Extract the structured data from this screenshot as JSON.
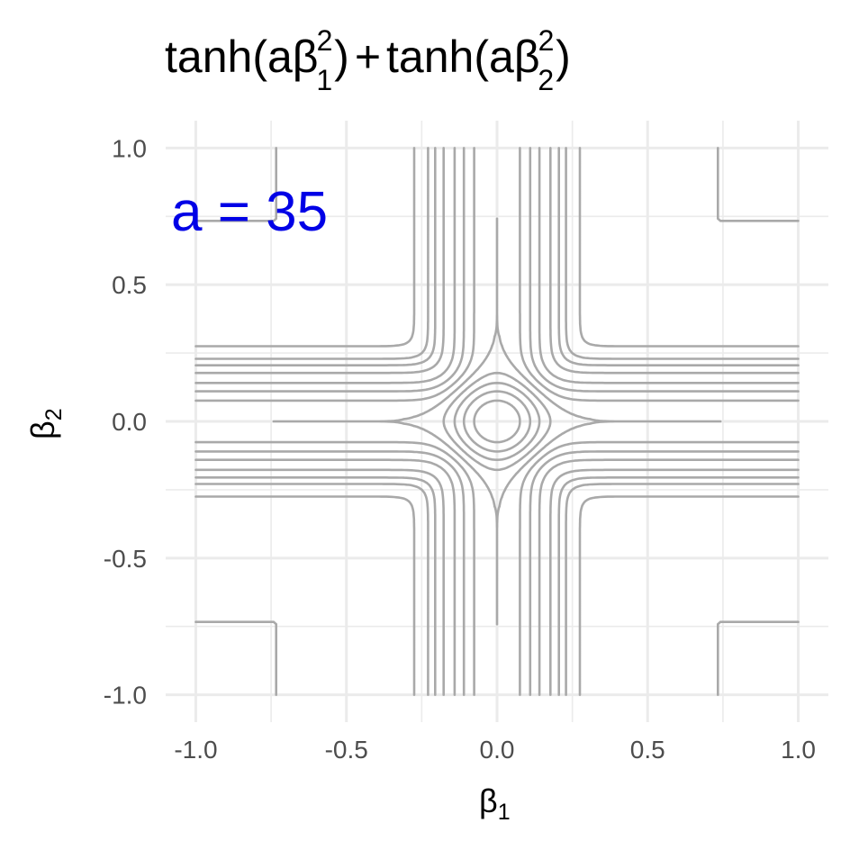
{
  "chart_data": {
    "type": "contour",
    "title": {
      "func": "tanh",
      "paren_open": "(",
      "param": "a",
      "beta": "β",
      "sup": "2",
      "sub1": "1",
      "sub2": "2",
      "paren_close": ")",
      "plus": "+"
    },
    "xlabel": {
      "symbol": "β",
      "subscript": "1"
    },
    "ylabel": {
      "symbol": "β",
      "subscript": "2"
    },
    "xlim": [
      -1.1,
      1.1
    ],
    "ylim": [
      -1.1,
      1.1
    ],
    "x_ticks": [
      -1.0,
      -0.5,
      0.0,
      0.5,
      1.0
    ],
    "y_ticks": [
      -1.0,
      -0.5,
      0.0,
      0.5,
      1.0
    ],
    "x_tick_labels": [
      "-1.0",
      "-0.5",
      "0.0",
      "0.5",
      "1.0"
    ],
    "y_tick_labels": [
      "-1.0",
      "-0.5",
      "0.0",
      "0.5",
      "1.0"
    ],
    "grid": true,
    "background": "#ffffff",
    "grid_color": "#ebebeb",
    "line_color": "#a9a9a9",
    "annotation": {
      "text": "a = 35",
      "color": "#0000e6"
    },
    "function": {
      "name": "tanh(a·b1²) + tanh(a·b2²)",
      "a": 35
    },
    "domain": [
      -1.0,
      1.0
    ],
    "contour_levels": [
      0.2,
      0.4,
      0.6,
      0.8,
      1.0,
      1.2,
      1.4,
      1.6,
      1.8,
      1.9,
      1.95,
      1.99,
      2.0
    ],
    "contour_level_labels": "unlabeled"
  }
}
